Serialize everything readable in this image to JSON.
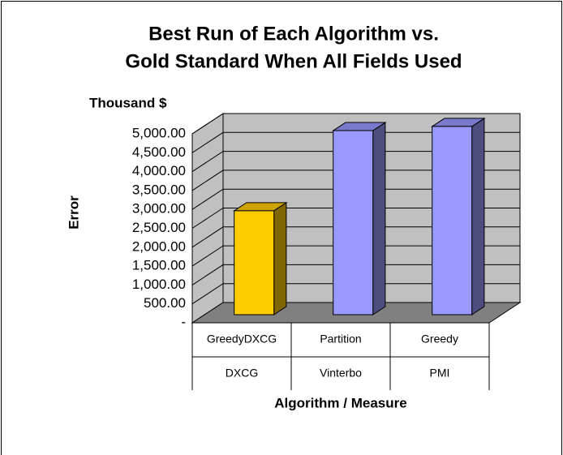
{
  "chart_data": {
    "type": "bar3d",
    "title": [
      "Best Run of Each Algorithm vs.",
      "Gold Standard When All Fields Used"
    ],
    "y_unit_label": "Thousand $",
    "y_axis_label": "Error",
    "x_axis_label": "Algorithm / Measure",
    "categories": [
      "GreedyDXCG",
      "Partition",
      "Greedy"
    ],
    "subcategories": [
      "DXCG",
      "Vinterbo",
      "PMI"
    ],
    "values": [
      2750,
      4870,
      4980
    ],
    "colors": [
      "#ffcc00",
      "#9999ff",
      "#9999ff"
    ],
    "ylim": [
      0,
      5000
    ],
    "yticks": [
      {
        "value": 0,
        "label": "-"
      },
      {
        "value": 500,
        "label": "500.00"
      },
      {
        "value": 1000,
        "label": "1,000.00"
      },
      {
        "value": 1500,
        "label": "1,500.00"
      },
      {
        "value": 2000,
        "label": "2,000.00"
      },
      {
        "value": 2500,
        "label": "2,500.00"
      },
      {
        "value": 3000,
        "label": "3,000.00"
      },
      {
        "value": 3500,
        "label": "3,500.00"
      },
      {
        "value": 4000,
        "label": "4,000.00"
      },
      {
        "value": 4500,
        "label": "4,500.00"
      },
      {
        "value": 5000,
        "label": "5,000.00"
      }
    ],
    "grid": true
  }
}
